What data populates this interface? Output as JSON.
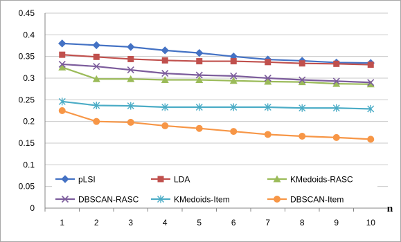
{
  "chart_data": {
    "type": "line",
    "title": "",
    "xlabel": "n",
    "ylabel": "",
    "x": [
      1,
      2,
      3,
      4,
      5,
      6,
      7,
      8,
      9,
      10
    ],
    "x_tick_labels": [
      "1",
      "2",
      "3",
      "4",
      "5",
      "6",
      "7",
      "8",
      "9",
      "10"
    ],
    "ylim": [
      0,
      0.45
    ],
    "y_ticks": [
      0,
      0.05,
      0.1,
      0.15,
      0.2,
      0.25,
      0.3,
      0.35,
      0.4,
      0.45
    ],
    "y_tick_labels": [
      "0",
      "0.05",
      "0.1",
      "0.15",
      "0.2",
      "0.25",
      "0.3",
      "0.35",
      "0.4",
      "0.45"
    ],
    "grid": true,
    "legend_position": "bottom-inside",
    "series": [
      {
        "name": "pLSI",
        "color": "#4472c4",
        "marker": "diamond",
        "values": [
          0.38,
          0.376,
          0.372,
          0.364,
          0.358,
          0.35,
          0.343,
          0.34,
          0.336,
          0.335
        ]
      },
      {
        "name": "LDA",
        "color": "#c0504d",
        "marker": "square",
        "values": [
          0.354,
          0.349,
          0.344,
          0.341,
          0.339,
          0.339,
          0.337,
          0.334,
          0.333,
          0.331
        ]
      },
      {
        "name": "KMedoids-RASC",
        "color": "#9bbb59",
        "marker": "triangle",
        "values": [
          0.325,
          0.298,
          0.298,
          0.296,
          0.296,
          0.294,
          0.292,
          0.291,
          0.287,
          0.286
        ]
      },
      {
        "name": "DBSCAN-RASC",
        "color": "#7c5c9c",
        "marker": "x",
        "values": [
          0.332,
          0.327,
          0.319,
          0.311,
          0.307,
          0.305,
          0.3,
          0.296,
          0.293,
          0.29
        ]
      },
      {
        "name": "KMedoids-Item",
        "color": "#4bacc6",
        "marker": "star",
        "values": [
          0.246,
          0.237,
          0.236,
          0.233,
          0.233,
          0.233,
          0.233,
          0.231,
          0.231,
          0.229
        ]
      },
      {
        "name": "DBSCAN-Item",
        "color": "#f79646",
        "marker": "circle",
        "values": [
          0.225,
          0.2,
          0.198,
          0.19,
          0.184,
          0.177,
          0.17,
          0.166,
          0.163,
          0.159
        ]
      }
    ]
  }
}
